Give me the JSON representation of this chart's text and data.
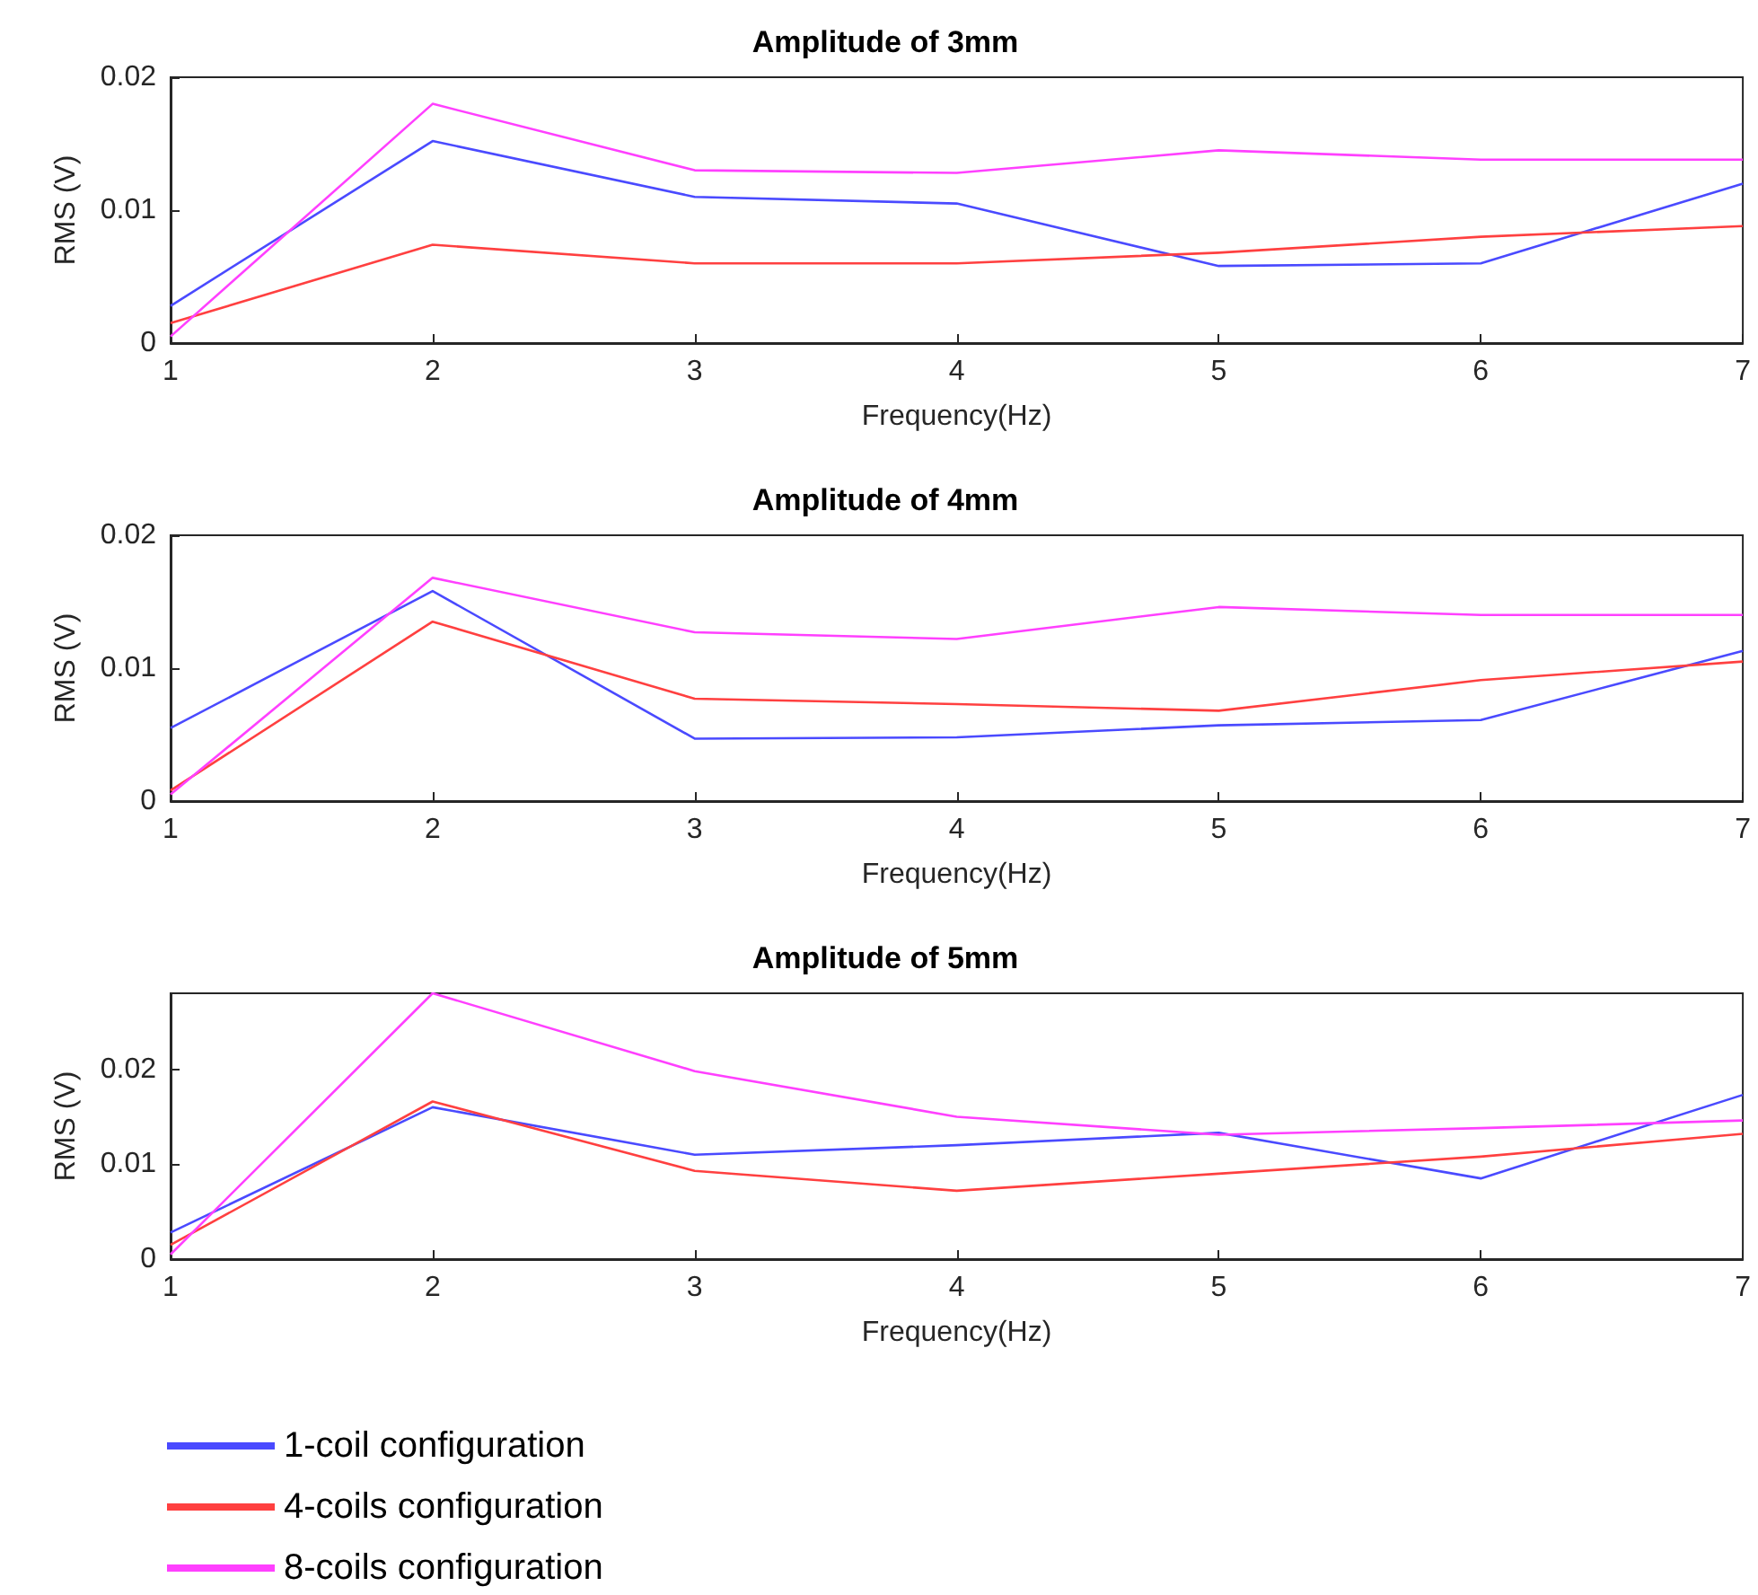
{
  "chart_data": [
    {
      "type": "line",
      "title": "Amplitude of 3mm",
      "xlabel": "Frequency(Hz)",
      "ylabel": "RMS (V)",
      "x": [
        1,
        2,
        3,
        4,
        5,
        6,
        7
      ],
      "xlim": [
        1,
        7
      ],
      "xticks": [
        1,
        2,
        3,
        4,
        5,
        6,
        7
      ],
      "ylim": [
        0,
        0.02
      ],
      "yticks": [
        0,
        0.01,
        0.02
      ],
      "series": [
        {
          "color": "#4a4aff",
          "values": [
            0.0028,
            0.0152,
            0.011,
            0.0105,
            0.0058,
            0.006,
            0.012
          ]
        },
        {
          "color": "#ff4040",
          "values": [
            0.0015,
            0.0074,
            0.006,
            0.006,
            0.0068,
            0.008,
            0.0088
          ]
        },
        {
          "color": "#ff40ff",
          "values": [
            0.0005,
            0.018,
            0.013,
            0.0128,
            0.0145,
            0.0138,
            0.0138
          ]
        }
      ]
    },
    {
      "type": "line",
      "title": "Amplitude of 4mm",
      "xlabel": "Frequency(Hz)",
      "ylabel": "RMS (V)",
      "x": [
        1,
        2,
        3,
        4,
        5,
        6,
        7
      ],
      "xlim": [
        1,
        7
      ],
      "xticks": [
        1,
        2,
        3,
        4,
        5,
        6,
        7
      ],
      "ylim": [
        0,
        0.02
      ],
      "yticks": [
        0,
        0.01,
        0.02
      ],
      "series": [
        {
          "color": "#4a4aff",
          "values": [
            0.0055,
            0.0158,
            0.0047,
            0.0048,
            0.0057,
            0.0061,
            0.0113
          ]
        },
        {
          "color": "#ff4040",
          "values": [
            0.0008,
            0.0135,
            0.0077,
            0.0073,
            0.0068,
            0.0091,
            0.0105
          ]
        },
        {
          "color": "#ff40ff",
          "values": [
            0.0005,
            0.0168,
            0.0127,
            0.0122,
            0.0146,
            0.014,
            0.014
          ]
        }
      ]
    },
    {
      "type": "line",
      "title": "Amplitude of 5mm",
      "xlabel": "Frequency(Hz)",
      "ylabel": "RMS (V)",
      "x": [
        1,
        2,
        3,
        4,
        5,
        6,
        7
      ],
      "xlim": [
        1,
        7
      ],
      "xticks": [
        1,
        2,
        3,
        4,
        5,
        6,
        7
      ],
      "ylim": [
        0,
        0.028
      ],
      "yticks": [
        0,
        0.01,
        0.02
      ],
      "legend": "bottom",
      "series": [
        {
          "name": "1-coil configuration",
          "color": "#4a4aff",
          "values": [
            0.0028,
            0.016,
            0.011,
            0.012,
            0.0133,
            0.0085,
            0.0173
          ]
        },
        {
          "name": "4-coils configuration",
          "color": "#ff4040",
          "values": [
            0.0015,
            0.0166,
            0.0093,
            0.0072,
            0.009,
            0.0108,
            0.0132
          ]
        },
        {
          "name": "8-coils configuration",
          "color": "#ff40ff",
          "values": [
            0.0005,
            0.028,
            0.0198,
            0.015,
            0.0131,
            0.0138,
            0.0146
          ]
        }
      ]
    }
  ]
}
